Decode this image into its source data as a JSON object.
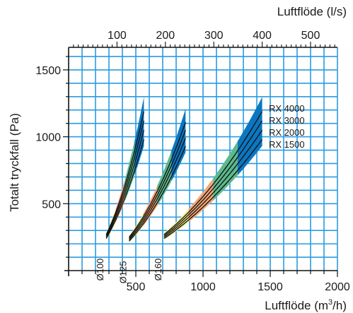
{
  "chart_data": {
    "type": "line",
    "title": "",
    "xlabel": "Luftflöde (m",
    "xlabel_sup": "3",
    "xlabel_tail": "/h)",
    "x2label": "Luftflöde (l/s)",
    "ylabel": "Totalt tryckfall (Pa)",
    "xlim": [
      0,
      2000
    ],
    "ylim": [
      0,
      1700
    ],
    "x_ticks": [
      "500",
      "1000",
      "1500",
      "2000"
    ],
    "x2_ticks": [
      "100",
      "200",
      "300",
      "400",
      "500"
    ],
    "y_ticks": [
      "500",
      "1000",
      "1500"
    ],
    "grid": true,
    "legend": [
      "RX 4000",
      "RX 3000",
      "RX 2000",
      "RX 1500"
    ],
    "legend_placement": "right",
    "band_colors": [
      "#f7ee8c",
      "#f3a577",
      "#5cb98c",
      "#0a77c2"
    ],
    "groups": [
      {
        "name": "Ø100",
        "x_start": 280,
        "x_end": 560,
        "series": [
          {
            "name": "RX 4000",
            "y_start": 270,
            "y_end": 1190
          },
          {
            "name": "RX 3000",
            "y_start": 260,
            "y_end": 1120
          },
          {
            "name": "RX 2000",
            "y_start": 250,
            "y_end": 1050
          },
          {
            "name": "RX 1500",
            "y_start": 240,
            "y_end": 980
          }
        ]
      },
      {
        "name": "Ø125",
        "x_start": 450,
        "x_end": 870,
        "series": [
          {
            "name": "RX 4000",
            "y_start": 250,
            "y_end": 1110
          },
          {
            "name": "RX 3000",
            "y_start": 240,
            "y_end": 1050
          },
          {
            "name": "RX 2000",
            "y_start": 230,
            "y_end": 990
          },
          {
            "name": "RX 1500",
            "y_start": 220,
            "y_end": 930
          }
        ]
      },
      {
        "name": "Ø160",
        "x_start": 710,
        "x_end": 1440,
        "series": [
          {
            "name": "RX 4000",
            "y_start": 270,
            "y_end": 1190
          },
          {
            "name": "RX 3000",
            "y_start": 260,
            "y_end": 1120
          },
          {
            "name": "RX 2000",
            "y_start": 250,
            "y_end": 1050
          },
          {
            "name": "RX 1500",
            "y_start": 240,
            "y_end": 980
          }
        ]
      }
    ]
  }
}
